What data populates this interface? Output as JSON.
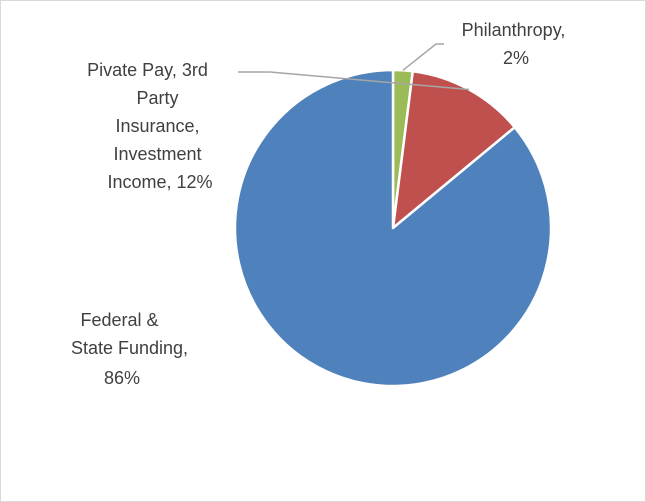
{
  "chart_data": {
    "type": "pie",
    "title": "",
    "slices": [
      {
        "label": "Philanthropy",
        "value": 2,
        "color": "#9BBB59"
      },
      {
        "label": "Pivate Pay, 3rd Party Insurance, Investment Income",
        "value": 12,
        "color": "#C0504D"
      },
      {
        "label": "Federal & State Funding",
        "value": 86,
        "color": "#4F81BD"
      }
    ],
    "data_labels": [
      {
        "lines": [
          "Philanthropy,",
          "2%"
        ]
      },
      {
        "lines": [
          "Pivate Pay, 3rd",
          "Party",
          "Insurance,",
          "Investment",
          "Income, 12%"
        ]
      },
      {
        "lines": [
          "Federal &",
          "State Funding,",
          "86%"
        ]
      }
    ],
    "legend": false
  }
}
